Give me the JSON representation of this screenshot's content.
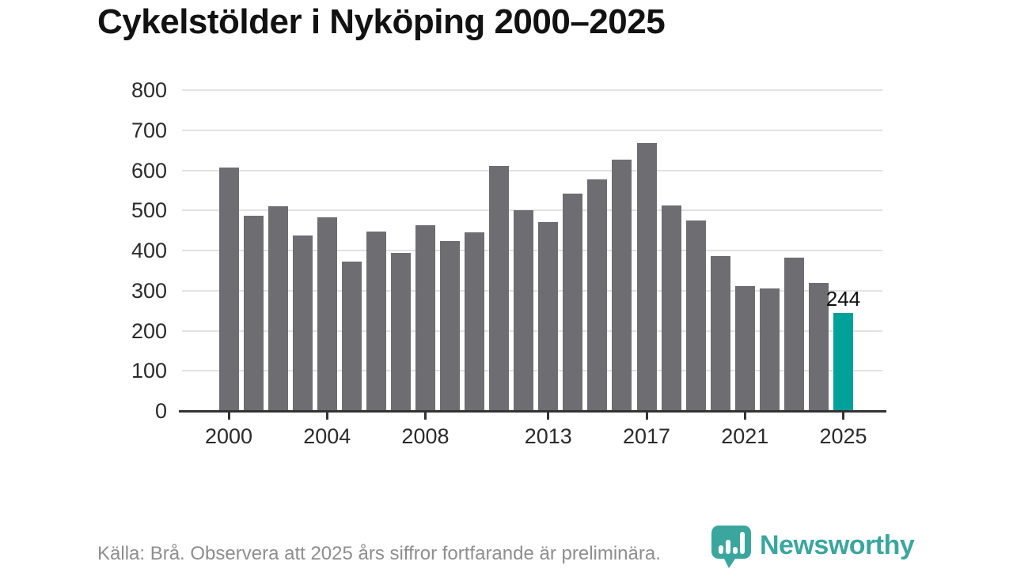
{
  "chart": {
    "title": "Cykelstölder i Nyköping 2000–2025"
  },
  "chart_data": {
    "type": "bar",
    "title": "Cykelstölder i Nyköping 2000–2025",
    "categories": [
      "2000",
      "2001",
      "2002",
      "2003",
      "2004",
      "2005",
      "2006",
      "2007",
      "2008",
      "2009",
      "2010",
      "2011",
      "2012",
      "2013",
      "2014",
      "2015",
      "2016",
      "2017",
      "2018",
      "2019",
      "2020",
      "2021",
      "2022",
      "2023",
      "2024",
      "2025"
    ],
    "values": [
      607,
      486,
      510,
      437,
      482,
      372,
      447,
      394,
      463,
      423,
      445,
      610,
      500,
      471,
      542,
      578,
      627,
      668,
      512,
      475,
      386,
      312,
      305,
      383,
      320,
      244
    ],
    "highlight_category": "2025",
    "highlight_value_label": "244",
    "xlabel": "",
    "ylabel": "",
    "xticks": [
      "2000",
      "2004",
      "2008",
      "2013",
      "2017",
      "2021",
      "2025"
    ],
    "ylim": [
      0,
      800
    ],
    "ytick_step": 100,
    "grid": true,
    "legend": false,
    "bar_color": "#6d6d72",
    "highlight_color": "#00a19a"
  },
  "footer": {
    "source": "Källa: Brå. Observera att 2025 års siffror fortfarande är preliminära.",
    "logo_text": "Newsworthy"
  },
  "colors": {
    "title_text": "#121212",
    "axis_text": "#2b2b2b",
    "gridline": "#e2e2e2",
    "axis_line": "#333333",
    "bar_gray": "#6d6d72",
    "accent_teal": "#00a19a",
    "logo_teal": "#3ba69e",
    "muted_text": "#8e8e8e"
  }
}
